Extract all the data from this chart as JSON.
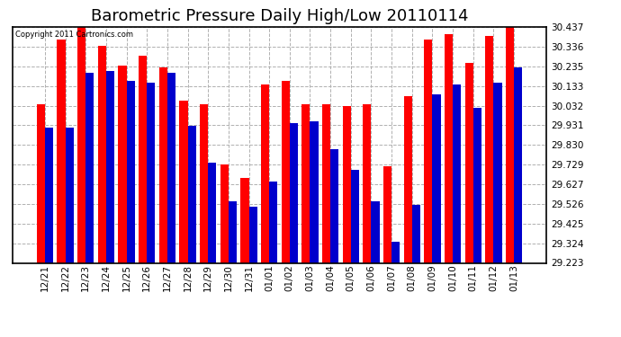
{
  "title": "Barometric Pressure Daily High/Low 20110114",
  "copyright": "Copyright 2011 Cartronics.com",
  "categories": [
    "12/21",
    "12/22",
    "12/23",
    "12/24",
    "12/25",
    "12/26",
    "12/27",
    "12/28",
    "12/29",
    "12/30",
    "12/31",
    "01/01",
    "01/02",
    "01/03",
    "01/04",
    "01/05",
    "01/06",
    "01/07",
    "01/08",
    "01/09",
    "01/10",
    "01/11",
    "01/12",
    "01/13"
  ],
  "high_values": [
    30.04,
    30.37,
    30.44,
    30.34,
    30.24,
    30.29,
    30.23,
    30.06,
    30.04,
    29.73,
    29.66,
    30.14,
    30.16,
    30.04,
    30.04,
    30.03,
    30.04,
    29.72,
    30.08,
    30.37,
    30.4,
    30.25,
    30.39,
    30.44
  ],
  "low_values": [
    29.92,
    29.92,
    30.2,
    30.21,
    30.16,
    30.15,
    30.2,
    29.93,
    29.74,
    29.54,
    29.51,
    29.64,
    29.94,
    29.95,
    29.81,
    29.7,
    29.54,
    29.33,
    29.52,
    30.09,
    30.14,
    30.02,
    30.15,
    30.23
  ],
  "high_color": "#ff0000",
  "low_color": "#0000cc",
  "bg_color": "#ffffff",
  "plot_bg_color": "#ffffff",
  "grid_color": "#b0b0b0",
  "ylim_min": 29.223,
  "ylim_max": 30.437,
  "yticks": [
    29.223,
    29.324,
    29.425,
    29.526,
    29.627,
    29.729,
    29.83,
    29.931,
    30.032,
    30.133,
    30.235,
    30.336,
    30.437
  ],
  "title_fontsize": 13,
  "bar_width": 0.4
}
